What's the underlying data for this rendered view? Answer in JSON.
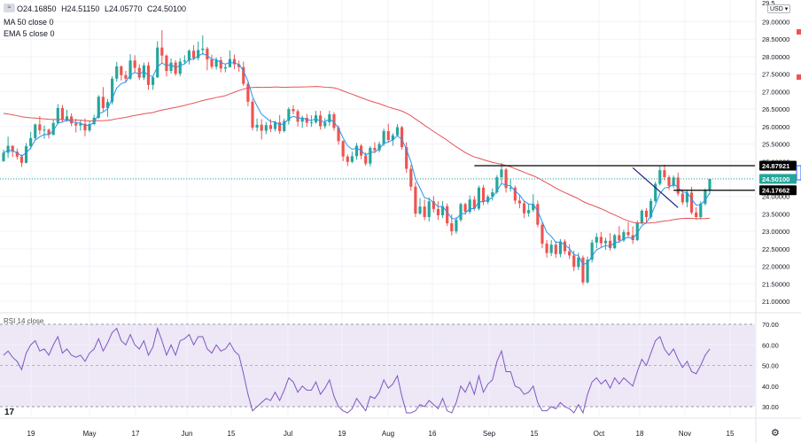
{
  "header": {
    "badge": "≈",
    "ohlc": {
      "open": "O24.16850",
      "high": "H24.51150",
      "low": "L24.05770",
      "close": "C24.50100"
    },
    "indicators": [
      "MA 50 close 0",
      "EMA 5 close 0"
    ],
    "rsi_label": "RSI 14 close",
    "currency": "USD ▾",
    "logo": "17"
  },
  "colors": {
    "up": "#26a69a",
    "down": "#ef5350",
    "ma50": "#e55353",
    "ema5": "#2196f3",
    "rsi": "#7e57c2",
    "rsi_band": "#ede7f6",
    "grid": "#f0f3fa"
  },
  "chart_data": [
    {
      "type": "candlestick",
      "title": "",
      "ylim": [
        21.0,
        29.8
      ],
      "y_ticks": [
        "21.00000",
        "21.50000",
        "22.00000",
        "22.50000",
        "23.00000",
        "23.50000",
        "24.00000",
        "24.50000",
        "25.00000",
        "25.50000",
        "26.00000",
        "26.50000",
        "27.00000",
        "27.50000",
        "28.00000",
        "28.50000",
        "29.00000"
      ],
      "x_ticks": [
        "19",
        "May",
        "17",
        "Jun",
        "15",
        "Jul",
        "19",
        "Aug",
        "16",
        "Sep",
        "15",
        "Oct",
        "18",
        "Nov",
        "15"
      ],
      "candles": [
        [
          25.01,
          25.34,
          24.99,
          25.25
        ],
        [
          25.25,
          25.71,
          25.1,
          25.45
        ],
        [
          25.45,
          25.46,
          25.13,
          25.28
        ],
        [
          25.28,
          25.37,
          25.06,
          25.14
        ],
        [
          25.14,
          25.2,
          24.84,
          24.96
        ],
        [
          24.96,
          25.53,
          24.95,
          25.44
        ],
        [
          25.44,
          25.85,
          25.35,
          25.67
        ],
        [
          25.67,
          26.08,
          25.62,
          26.06
        ],
        [
          26.06,
          26.3,
          25.77,
          25.89
        ],
        [
          25.89,
          26.03,
          25.65,
          25.91
        ],
        [
          25.91,
          25.94,
          25.66,
          25.76
        ],
        [
          25.76,
          26.2,
          25.75,
          26.1
        ],
        [
          26.1,
          26.64,
          26.06,
          26.53
        ],
        [
          26.53,
          26.62,
          26.12,
          26.19
        ],
        [
          26.19,
          26.48,
          26.13,
          26.29
        ],
        [
          26.29,
          26.38,
          26.01,
          26.09
        ],
        [
          26.09,
          26.22,
          25.83,
          26.03
        ],
        [
          26.03,
          26.2,
          25.88,
          26.08
        ],
        [
          26.08,
          26.23,
          25.72,
          25.89
        ],
        [
          25.89,
          26.15,
          25.84,
          26.07
        ],
        [
          26.07,
          26.34,
          26.04,
          26.25
        ],
        [
          26.25,
          26.9,
          26.22,
          26.85
        ],
        [
          26.85,
          27.13,
          26.44,
          26.53
        ],
        [
          26.53,
          26.79,
          26.28,
          26.7
        ],
        [
          26.7,
          27.44,
          26.63,
          27.37
        ],
        [
          27.37,
          27.85,
          27.28,
          27.72
        ],
        [
          27.72,
          27.75,
          27.32,
          27.47
        ],
        [
          27.47,
          27.59,
          27.25,
          27.37
        ],
        [
          27.37,
          28.07,
          27.33,
          27.89
        ],
        [
          27.89,
          28.04,
          27.55,
          27.68
        ],
        [
          27.68,
          27.78,
          27.33,
          27.4
        ],
        [
          27.4,
          27.83,
          27.33,
          27.75
        ],
        [
          27.75,
          27.85,
          27.05,
          27.19
        ],
        [
          27.19,
          27.44,
          27.05,
          27.41
        ],
        [
          27.41,
          28.44,
          27.39,
          28.26
        ],
        [
          28.26,
          28.76,
          27.81,
          28.03
        ],
        [
          28.03,
          28.06,
          27.43,
          27.59
        ],
        [
          27.59,
          27.95,
          27.52,
          27.83
        ],
        [
          27.83,
          27.9,
          27.45,
          27.51
        ],
        [
          27.51,
          27.96,
          27.44,
          27.86
        ],
        [
          27.86,
          28.04,
          27.79,
          27.89
        ],
        [
          27.89,
          28.21,
          27.78,
          28.17
        ],
        [
          28.17,
          28.33,
          27.9,
          27.96
        ],
        [
          27.96,
          28.43,
          27.89,
          28.19
        ],
        [
          28.19,
          28.61,
          28.06,
          28.23
        ],
        [
          28.23,
          28.28,
          27.61,
          27.92
        ],
        [
          27.92,
          28.06,
          27.65,
          27.71
        ],
        [
          27.71,
          27.98,
          27.63,
          27.9
        ],
        [
          27.9,
          28.0,
          27.55,
          27.66
        ],
        [
          27.66,
          27.79,
          27.55,
          27.7
        ],
        [
          27.7,
          28.18,
          27.69,
          27.93
        ],
        [
          27.93,
          28.06,
          27.64,
          27.78
        ],
        [
          27.78,
          27.89,
          27.57,
          27.7
        ],
        [
          27.7,
          27.86,
          27.16,
          27.22
        ],
        [
          27.22,
          27.28,
          26.58,
          26.71
        ],
        [
          26.71,
          26.79,
          25.89,
          25.97
        ],
        [
          25.97,
          26.23,
          25.86,
          26.05
        ],
        [
          26.05,
          26.21,
          25.63,
          25.88
        ],
        [
          25.88,
          26.13,
          25.78,
          26.04
        ],
        [
          26.04,
          26.21,
          25.84,
          25.93
        ],
        [
          25.93,
          26.16,
          25.86,
          26.12
        ],
        [
          26.12,
          26.33,
          25.79,
          25.87
        ],
        [
          25.87,
          26.23,
          25.83,
          26.16
        ],
        [
          26.16,
          26.55,
          26.06,
          26.5
        ],
        [
          26.5,
          26.61,
          26.35,
          26.44
        ],
        [
          26.44,
          26.49,
          26.0,
          26.14
        ],
        [
          26.14,
          26.31,
          25.96,
          26.25
        ],
        [
          26.25,
          26.36,
          25.99,
          26.11
        ],
        [
          26.11,
          26.32,
          25.99,
          26.12
        ],
        [
          26.12,
          26.45,
          26.08,
          26.32
        ],
        [
          26.32,
          26.45,
          25.91,
          26.01
        ],
        [
          26.01,
          26.24,
          25.94,
          26.12
        ],
        [
          26.12,
          26.45,
          26.02,
          26.35
        ],
        [
          26.35,
          26.41,
          25.88,
          25.96
        ],
        [
          25.96,
          26.03,
          25.48,
          25.58
        ],
        [
          25.58,
          25.61,
          25.01,
          25.14
        ],
        [
          25.14,
          25.2,
          24.87,
          24.99
        ],
        [
          24.99,
          25.28,
          24.95,
          25.15
        ],
        [
          25.15,
          25.53,
          25.05,
          25.45
        ],
        [
          25.45,
          25.5,
          25.06,
          25.17
        ],
        [
          25.17,
          25.26,
          24.88,
          24.94
        ],
        [
          24.94,
          25.44,
          24.86,
          25.39
        ],
        [
          25.39,
          25.55,
          25.23,
          25.32
        ],
        [
          25.32,
          25.57,
          25.26,
          25.5
        ],
        [
          25.5,
          25.94,
          25.44,
          25.87
        ],
        [
          25.87,
          26.08,
          25.53,
          25.61
        ],
        [
          25.61,
          25.81,
          25.45,
          25.75
        ],
        [
          25.75,
          26.07,
          25.71,
          25.98
        ],
        [
          25.98,
          26.02,
          25.34,
          25.41
        ],
        [
          25.41,
          25.55,
          24.68,
          24.79
        ],
        [
          24.79,
          24.9,
          24.16,
          24.28
        ],
        [
          24.28,
          24.41,
          23.41,
          23.51
        ],
        [
          23.51,
          23.95,
          23.47,
          23.71
        ],
        [
          23.71,
          23.91,
          23.32,
          23.41
        ],
        [
          23.41,
          23.97,
          23.28,
          23.86
        ],
        [
          23.86,
          24.01,
          23.54,
          23.64
        ],
        [
          23.64,
          23.86,
          23.33,
          23.46
        ],
        [
          23.46,
          23.87,
          23.38,
          23.72
        ],
        [
          23.72,
          23.8,
          23.15,
          23.23
        ],
        [
          23.23,
          23.49,
          22.88,
          23.0
        ],
        [
          23.0,
          23.41,
          22.93,
          23.33
        ],
        [
          23.33,
          23.82,
          23.27,
          23.78
        ],
        [
          23.78,
          23.82,
          23.47,
          23.56
        ],
        [
          23.56,
          24.03,
          23.5,
          23.91
        ],
        [
          23.91,
          24.01,
          23.59,
          23.65
        ],
        [
          23.65,
          24.31,
          23.6,
          24.25
        ],
        [
          24.25,
          24.33,
          23.75,
          23.84
        ],
        [
          23.84,
          24.05,
          23.78,
          23.99
        ],
        [
          23.99,
          24.23,
          23.88,
          24.12
        ],
        [
          24.12,
          24.61,
          24.07,
          24.55
        ],
        [
          24.55,
          24.96,
          24.38,
          24.77
        ],
        [
          24.77,
          24.82,
          24.11,
          24.24
        ],
        [
          24.24,
          24.49,
          24.14,
          24.25
        ],
        [
          24.25,
          24.31,
          23.78,
          23.88
        ],
        [
          23.88,
          24.03,
          23.66,
          23.8
        ],
        [
          23.8,
          23.88,
          23.38,
          23.52
        ],
        [
          23.52,
          23.78,
          23.42,
          23.61
        ],
        [
          23.61,
          24.06,
          23.55,
          23.78
        ],
        [
          23.78,
          23.88,
          23.12,
          23.19
        ],
        [
          23.19,
          23.26,
          22.52,
          22.65
        ],
        [
          22.65,
          22.75,
          22.25,
          22.38
        ],
        [
          22.38,
          22.75,
          22.29,
          22.62
        ],
        [
          22.62,
          22.72,
          22.24,
          22.35
        ],
        [
          22.35,
          22.78,
          22.26,
          22.71
        ],
        [
          22.71,
          22.77,
          22.34,
          22.43
        ],
        [
          22.43,
          22.63,
          22.21,
          22.31
        ],
        [
          22.31,
          22.45,
          21.86,
          21.98
        ],
        [
          21.98,
          22.39,
          21.89,
          22.25
        ],
        [
          22.25,
          22.31,
          21.47,
          21.54
        ],
        [
          21.54,
          22.28,
          21.51,
          22.19
        ],
        [
          22.19,
          22.76,
          22.11,
          22.68
        ],
        [
          22.68,
          22.95,
          22.52,
          22.84
        ],
        [
          22.84,
          22.98,
          22.55,
          22.66
        ],
        [
          22.66,
          22.82,
          22.47,
          22.73
        ],
        [
          22.73,
          22.95,
          22.45,
          22.52
        ],
        [
          22.52,
          22.93,
          22.49,
          22.89
        ],
        [
          22.89,
          23.15,
          22.67,
          22.74
        ],
        [
          22.74,
          23.05,
          22.7,
          22.98
        ],
        [
          22.98,
          23.27,
          22.82,
          22.89
        ],
        [
          22.89,
          23.14,
          22.64,
          22.75
        ],
        [
          22.75,
          23.31,
          22.72,
          23.25
        ],
        [
          23.25,
          23.63,
          23.2,
          23.59
        ],
        [
          23.59,
          23.66,
          23.23,
          23.41
        ],
        [
          23.41,
          23.94,
          23.36,
          23.87
        ],
        [
          23.87,
          24.42,
          23.82,
          24.36
        ],
        [
          24.36,
          24.86,
          24.31,
          24.75
        ],
        [
          24.75,
          24.91,
          24.46,
          24.55
        ],
        [
          24.55,
          24.61,
          24.18,
          24.3
        ],
        [
          24.3,
          24.6,
          24.24,
          24.54
        ],
        [
          24.54,
          24.68,
          24.01,
          24.08
        ],
        [
          24.08,
          24.2,
          23.76,
          23.83
        ],
        [
          23.83,
          24.17,
          23.69,
          24.11
        ],
        [
          24.11,
          24.28,
          23.48,
          23.54
        ],
        [
          23.54,
          23.69,
          23.33,
          23.41
        ],
        [
          23.41,
          23.86,
          23.34,
          23.79
        ],
        [
          23.79,
          24.23,
          23.74,
          24.16
        ],
        [
          24.17,
          24.51,
          24.06,
          24.5
        ]
      ]
    },
    {
      "type": "line",
      "title": "",
      "ylim": [
        25,
        75
      ],
      "y_ticks": [
        "30.00",
        "40.00",
        "50.00",
        "60.00",
        "70.00"
      ],
      "band": [
        30,
        70
      ],
      "midline": 50,
      "series": [
        {
          "values": [
            55,
            57,
            54,
            52,
            48,
            56,
            60,
            62,
            57,
            58,
            55,
            60,
            64,
            56,
            58,
            55,
            54,
            55,
            52,
            56,
            58,
            63,
            57,
            61,
            66,
            68,
            62,
            60,
            65,
            60,
            58,
            62,
            55,
            59,
            68,
            62,
            55,
            60,
            55,
            62,
            63,
            65,
            60,
            64,
            64,
            58,
            56,
            60,
            57,
            58,
            61,
            57,
            55,
            46,
            36,
            28,
            30,
            32,
            34,
            33,
            37,
            33,
            38,
            44,
            42,
            37,
            40,
            38,
            38,
            42,
            36,
            39,
            43,
            35,
            30,
            28,
            27,
            29,
            34,
            31,
            28,
            35,
            34,
            37,
            43,
            39,
            41,
            45,
            35,
            27,
            27,
            28,
            31,
            30,
            33,
            31,
            29,
            34,
            28,
            27,
            32,
            40,
            37,
            42,
            36,
            45,
            37,
            41,
            43,
            52,
            57,
            47,
            47,
            40,
            39,
            36,
            37,
            40,
            32,
            28,
            28,
            30,
            29,
            32,
            30,
            29,
            27,
            31,
            27,
            36,
            42,
            44,
            41,
            43,
            39,
            44,
            41,
            44,
            42,
            40,
            47,
            53,
            50,
            56,
            62,
            64,
            58,
            55,
            58,
            53,
            49,
            52,
            47,
            46,
            50,
            55,
            58
          ]
        }
      ]
    }
  ],
  "annotations": {
    "price_tags": [
      {
        "value": 24.87921,
        "label": "24.87921"
      },
      {
        "value": 24.501,
        "label": "24.50100"
      },
      {
        "value": 24.17662,
        "label": "24.17662"
      }
    ],
    "top_price_label": "29.5..."
  }
}
